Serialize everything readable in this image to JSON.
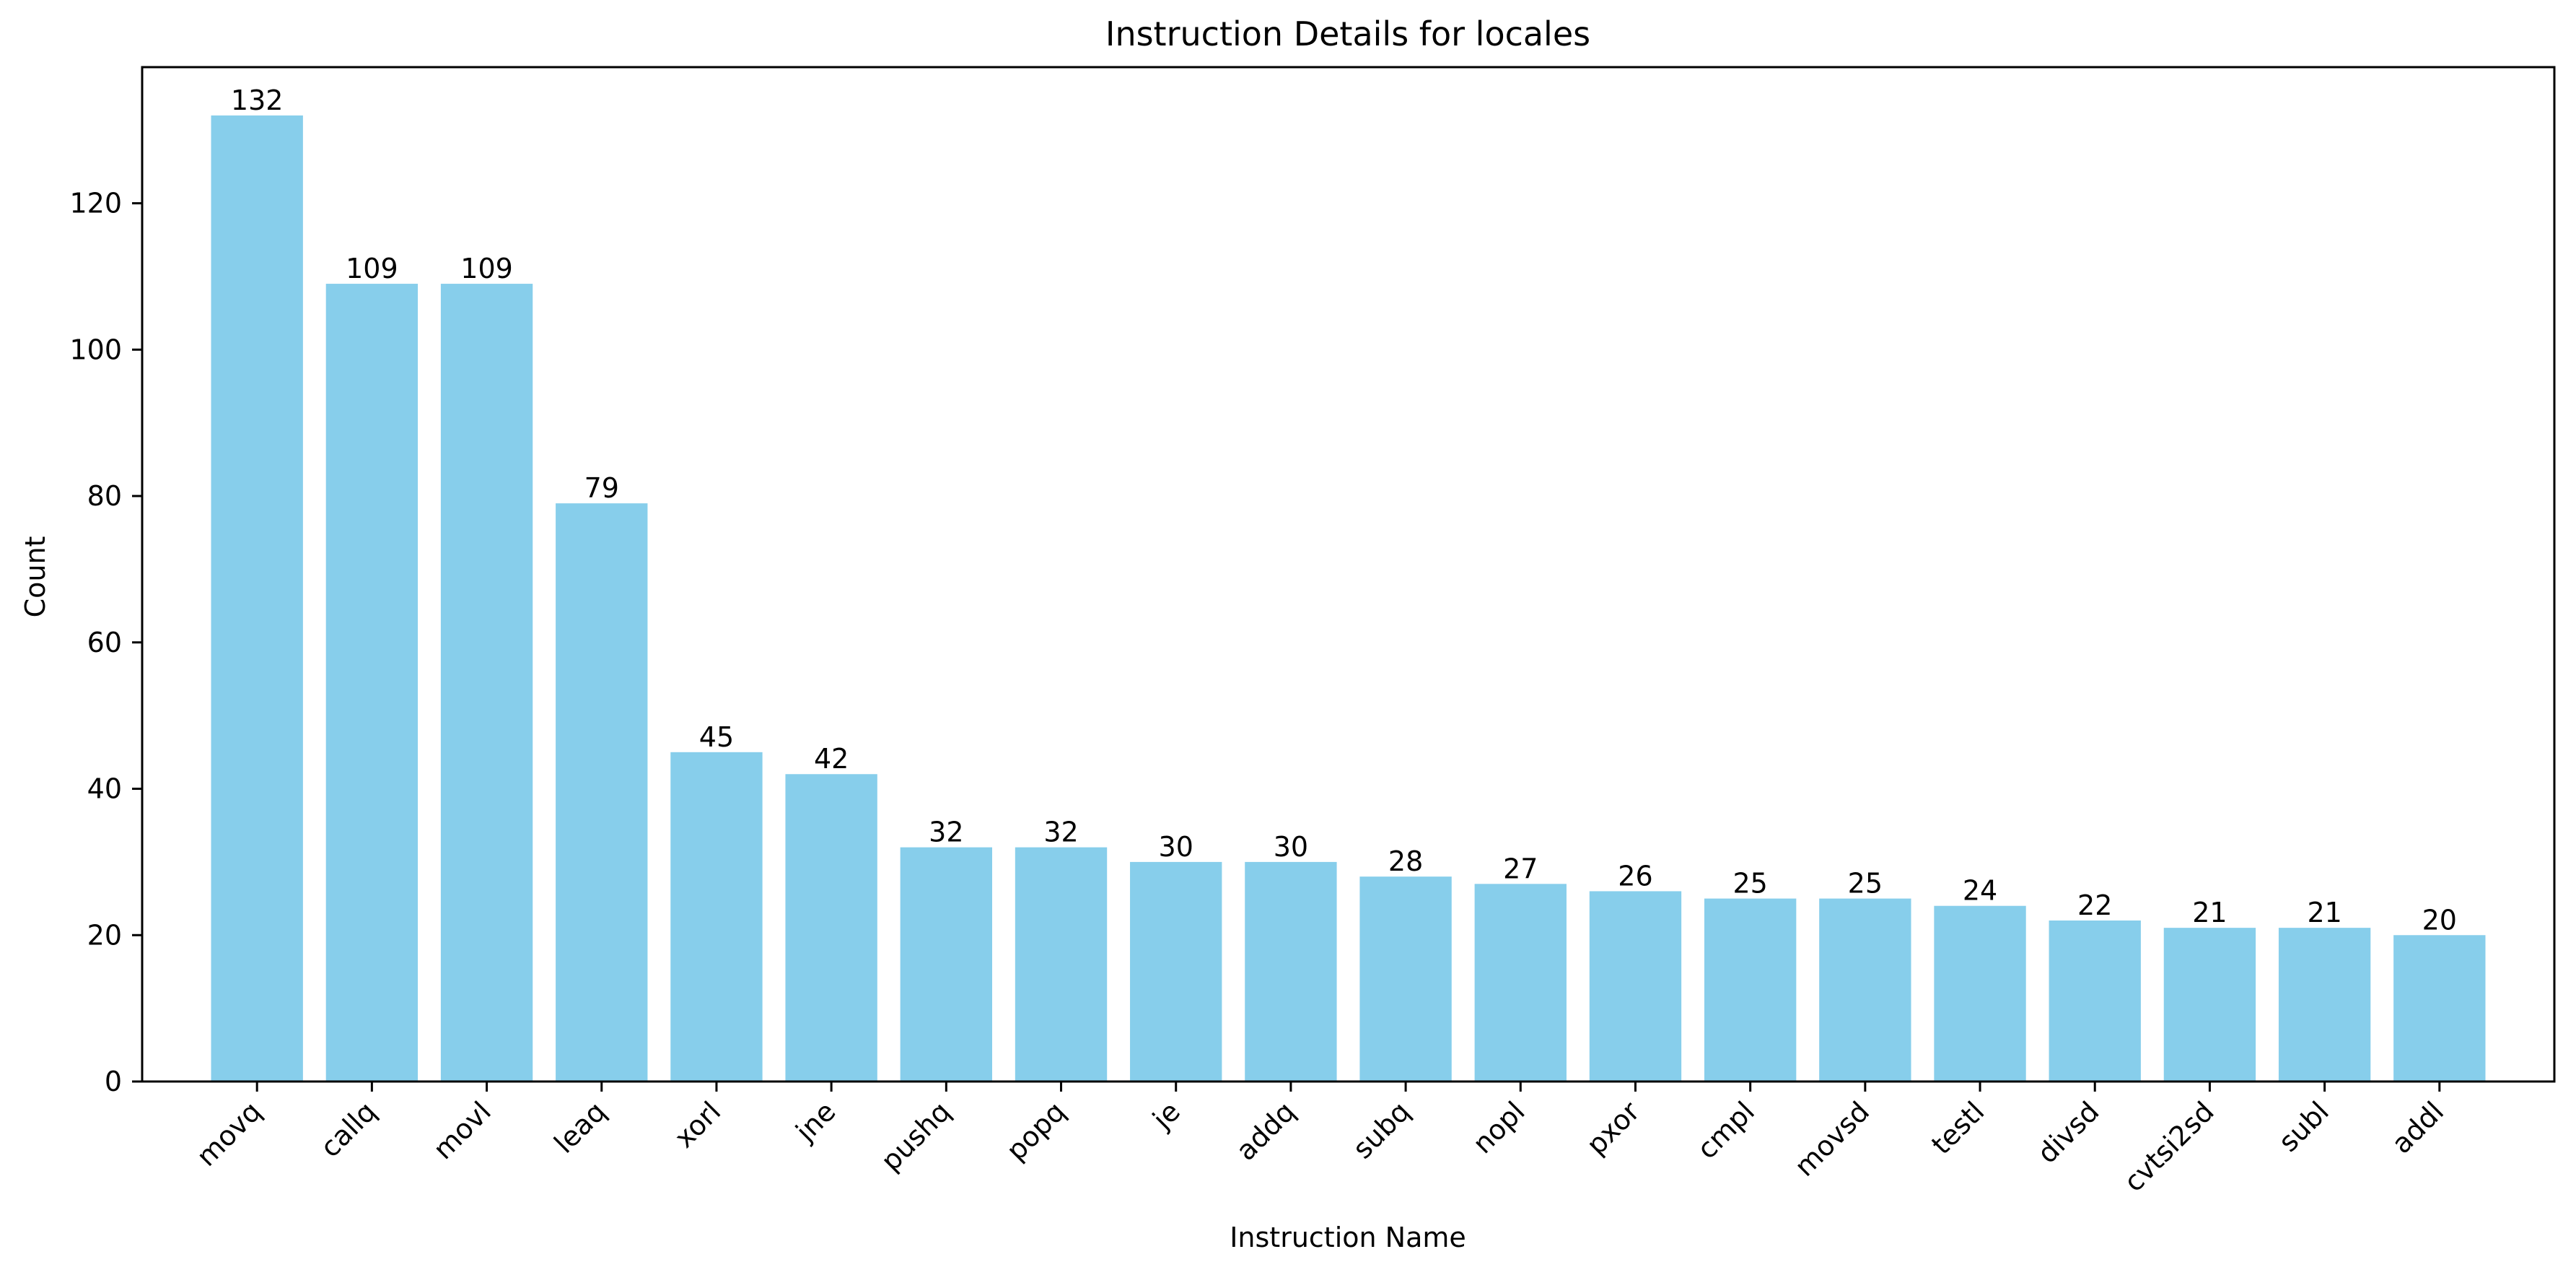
{
  "chart_data": {
    "type": "bar",
    "title": "Instruction Details for locales",
    "xlabel": "Instruction Name",
    "ylabel": "Count",
    "categories": [
      "movq",
      "callq",
      "movl",
      "leaq",
      "xorl",
      "jne",
      "pushq",
      "popq",
      "je",
      "addq",
      "subq",
      "nopl",
      "pxor",
      "cmpl",
      "movsd",
      "testl",
      "divsd",
      "cvtsi2sd",
      "subl",
      "addl"
    ],
    "values": [
      132,
      109,
      109,
      79,
      45,
      42,
      32,
      32,
      30,
      30,
      28,
      27,
      26,
      25,
      25,
      24,
      22,
      21,
      21,
      20
    ],
    "ylim": [
      0,
      138.6
    ],
    "yticks": [
      0,
      20,
      40,
      60,
      80,
      100,
      120
    ],
    "bar_color": "#87CEEB",
    "grid": false,
    "data_labels": true
  }
}
